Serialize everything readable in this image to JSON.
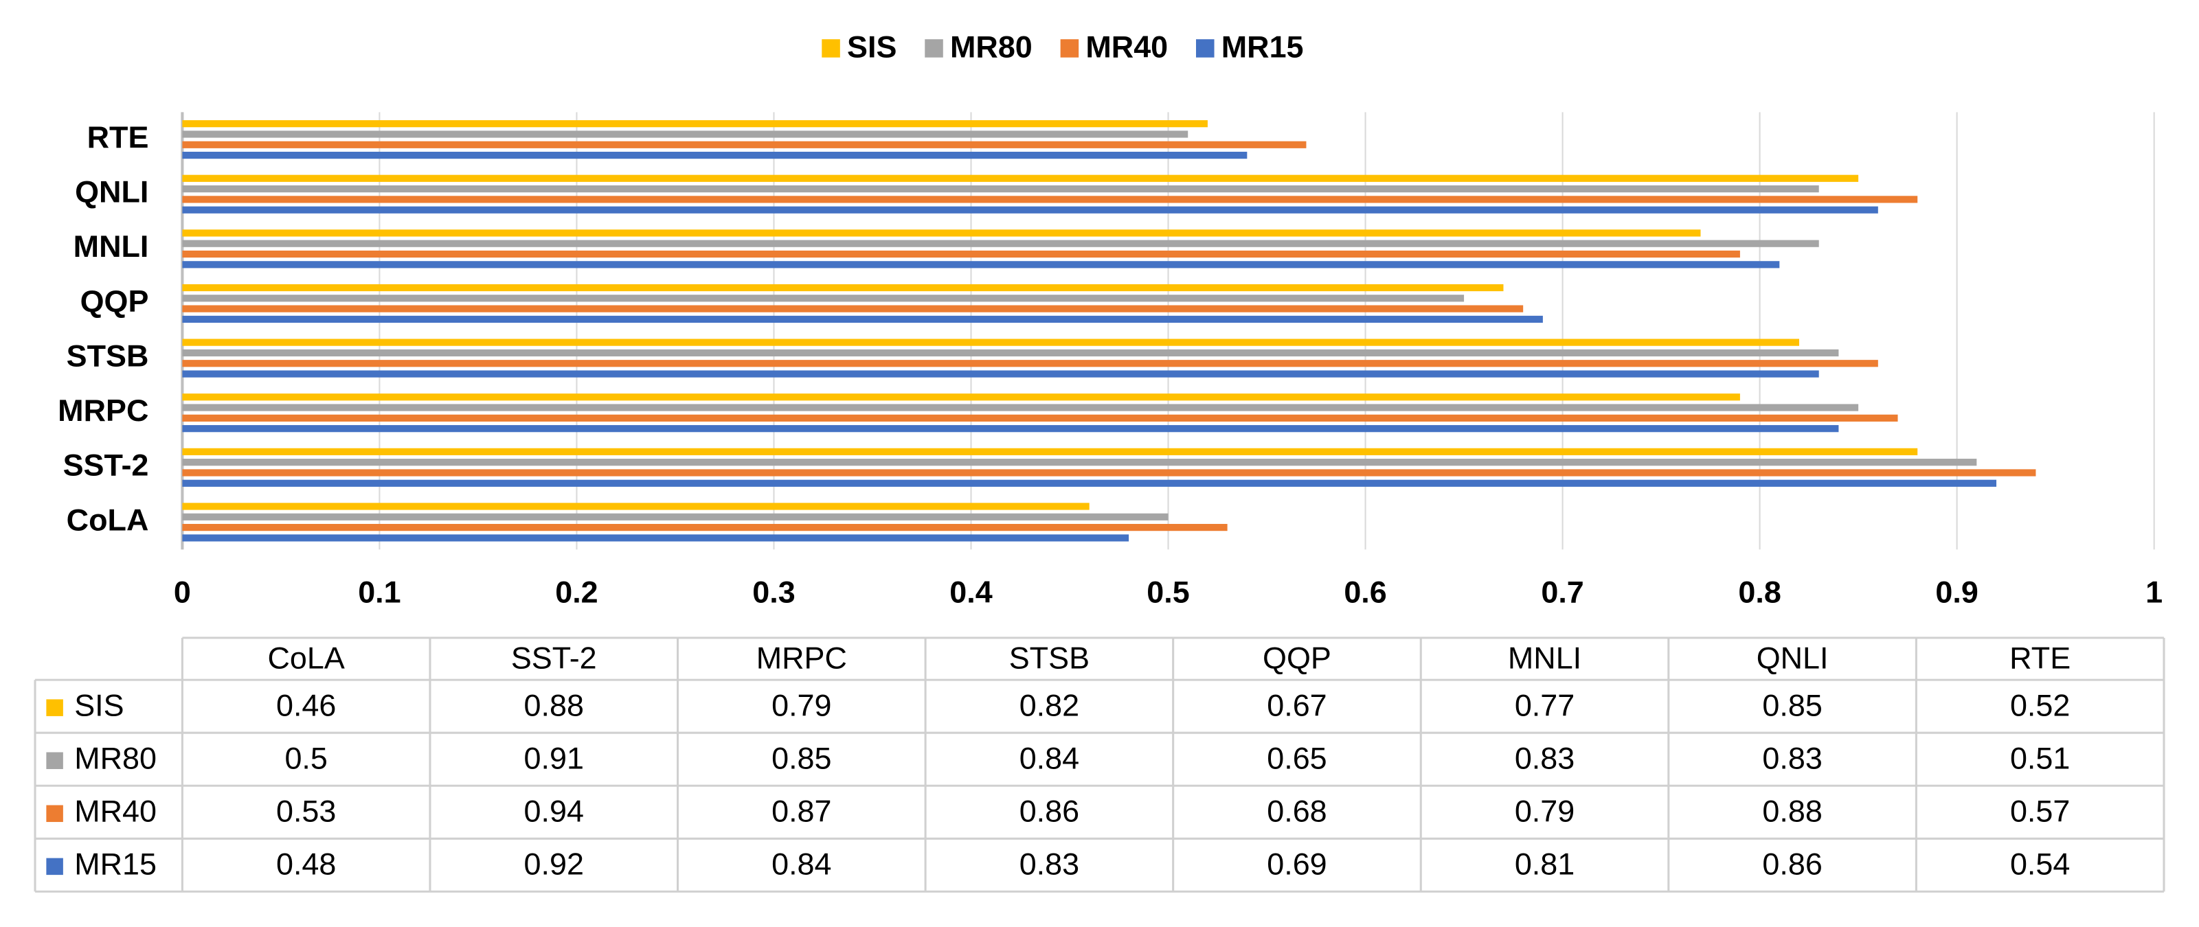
{
  "chart_data": {
    "type": "bar",
    "orientation": "horizontal",
    "categories": [
      "CoLA",
      "SST-2",
      "MRPC",
      "STSB",
      "QQP",
      "MNLI",
      "QNLI",
      "RTE"
    ],
    "series": [
      {
        "name": "SIS",
        "color": "#FFC000",
        "values": [
          0.46,
          0.88,
          0.79,
          0.82,
          0.67,
          0.77,
          0.85,
          0.52
        ]
      },
      {
        "name": "MR80",
        "color": "#A5A5A5",
        "values": [
          0.5,
          0.91,
          0.85,
          0.84,
          0.65,
          0.83,
          0.83,
          0.51
        ]
      },
      {
        "name": "MR40",
        "color": "#ED7D31",
        "values": [
          0.53,
          0.94,
          0.87,
          0.86,
          0.68,
          0.79,
          0.88,
          0.57
        ]
      },
      {
        "name": "MR15",
        "color": "#4472C4",
        "values": [
          0.48,
          0.92,
          0.84,
          0.83,
          0.69,
          0.81,
          0.86,
          0.54
        ]
      }
    ],
    "xlim": [
      0,
      1
    ],
    "xticks": [
      0,
      0.1,
      0.2,
      0.3,
      0.4,
      0.5,
      0.6,
      0.7,
      0.8,
      0.9,
      1
    ],
    "grid": true,
    "legend": "top",
    "data_table": true
  }
}
